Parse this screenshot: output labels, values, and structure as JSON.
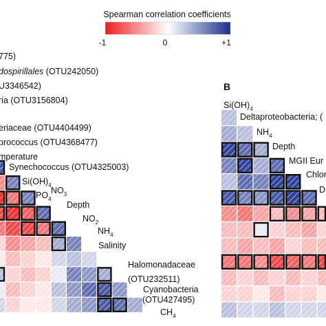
{
  "legend": {
    "title": "Spearman correlation coefficients",
    "ticks": [
      "-1",
      "0",
      "+1"
    ],
    "colors": {
      "negative": "#ee1c1c",
      "zero": "#ffffff",
      "positive": "#1b2f8c"
    }
  },
  "panel_b_label": "B",
  "chart_data": [
    {
      "type": "heatmap",
      "panel": "A",
      "taxa_labels": [
        {
          "text": "775)",
          "italic_prefix": ""
        },
        {
          "text": "(OTU242050)",
          "italic_prefix": "dospirillales "
        },
        {
          "text": "U3346542)",
          "italic_prefix": ""
        },
        {
          "text": "ria (OTU3156804)",
          "italic_prefix": ""
        },
        {
          "text": "eriaceae (OTU4404499)",
          "italic_prefix": ""
        },
        {
          "text": "prococcus (OTU4368477)",
          "italic_prefix": ""
        },
        {
          "text": "mperature",
          "italic_prefix": ""
        }
      ],
      "diagonal_labels": [
        "Synechococcus (OTU4325003)",
        "Si(OH)",
        "PO",
        "NO",
        "Depth",
        "NO",
        "NH",
        "Salinity",
        "Halomonadaceae",
        "(OTU232511)",
        "Cyanobacteria",
        "(OTU427495)",
        "CH"
      ],
      "subscripts": [
        "4",
        "4",
        "3",
        "2",
        "4",
        "4"
      ],
      "rows": [
        {
          "values": [
            0.8
          ]
        },
        {
          "values": [
            -0.5,
            0.6
          ]
        },
        {
          "values": [
            -0.9,
            -0.6,
            0.6
          ]
        },
        {
          "values": [
            -0.8,
            -0.9,
            -0.7,
            0.7
          ]
        },
        {
          "values": [
            -0.6,
            -0.8,
            -0.8,
            -0.6,
            0.7
          ]
        },
        {
          "values": [
            -0.2,
            -0.5,
            -0.4,
            -0.3,
            0.4,
            0.6
          ]
        },
        {
          "values": [
            -0.1,
            -0.3,
            -0.2,
            -0.1,
            0.2,
            0.3,
            0.2
          ]
        },
        {
          "values": [
            0.3,
            -0.2,
            -0.3,
            -0.2,
            0.1,
            0.6,
            0.5,
            0.4
          ]
        },
        {
          "values": [
            0.1,
            -0.3,
            -0.2,
            -0.1,
            0.3,
            0.5,
            0.7,
            0.8,
            0.5
          ]
        },
        {
          "values": [
            0.2,
            -0.2,
            -0.1,
            -0.1,
            0.2,
            0.4,
            0.5,
            0.8,
            0.7,
            0.4
          ]
        }
      ],
      "significant": [
        [
          0,
          0
        ],
        [
          1,
          1
        ],
        [
          2,
          0
        ],
        [
          2,
          1
        ],
        [
          2,
          2
        ],
        [
          3,
          0
        ],
        [
          3,
          1
        ],
        [
          3,
          2
        ],
        [
          3,
          3
        ],
        [
          4,
          2
        ],
        [
          4,
          3
        ],
        [
          4,
          4
        ],
        [
          5,
          4
        ],
        [
          7,
          0
        ],
        [
          7,
          7
        ],
        [
          8,
          7
        ],
        [
          9,
          7
        ],
        [
          9,
          8
        ]
      ]
    },
    {
      "type": "heatmap",
      "panel": "B",
      "diagonal_labels": [
        "Si(OH)",
        "Deltaproteobacteria; (",
        "NH",
        "Depth",
        "MGII Eur",
        "Chlor",
        "D"
      ],
      "subscripts": [
        "4",
        "4"
      ],
      "rows": [
        {
          "values": [
            0.3
          ]
        },
        {
          "values": [
            0.4,
            0.3
          ]
        },
        {
          "values": [
            0.9,
            0.7,
            0.4
          ]
        },
        {
          "values": [
            0.6,
            0.9,
            0.4,
            0.7
          ]
        },
        {
          "values": [
            0.3,
            0.7,
            0.6,
            0.9,
            0.9
          ]
        },
        {
          "values": [
            0.8,
            0.6,
            0.5,
            0.8,
            0.9,
            0.7
          ]
        },
        {
          "values": [
            -0.5,
            -0.6,
            -0.4,
            -0.3,
            -0.5,
            -0.4,
            -0.3
          ]
        },
        {
          "values": [
            -0.3,
            -0.3,
            0.1,
            -0.2,
            -0.3,
            -0.4,
            -0.2
          ]
        },
        {
          "values": [
            -0.3,
            -0.4,
            -0.3,
            -0.4,
            -0.2,
            -0.3,
            -0.3
          ]
        },
        {
          "values": [
            -0.6,
            -0.6,
            -0.5,
            -0.8,
            -0.7,
            -0.6,
            -0.8
          ]
        },
        {
          "values": [
            -0.3,
            -0.2,
            -0.3,
            -0.2,
            -0.3,
            -0.2,
            -0.3
          ]
        },
        {
          "values": [
            -0.2,
            -0.2,
            -0.1,
            -0.3,
            -0.2,
            -0.2,
            -0.1
          ]
        },
        {
          "values": [
            0.3,
            0.2,
            0.2,
            0.3,
            0.2,
            0.2,
            0.2
          ]
        }
      ],
      "significant": [
        [
          2,
          0
        ],
        [
          2,
          1
        ],
        [
          2,
          2
        ],
        [
          3,
          1
        ],
        [
          3,
          3
        ],
        [
          4,
          3
        ],
        [
          4,
          4
        ],
        [
          5,
          0
        ],
        [
          5,
          1
        ],
        [
          5,
          2
        ],
        [
          5,
          3
        ],
        [
          5,
          4
        ],
        [
          5,
          5
        ],
        [
          6,
          3
        ],
        [
          6,
          4
        ],
        [
          6,
          5
        ],
        [
          6,
          6
        ],
        [
          7,
          2
        ],
        [
          9,
          0
        ],
        [
          9,
          1
        ],
        [
          9,
          2
        ],
        [
          9,
          3
        ],
        [
          9,
          4
        ],
        [
          9,
          5
        ],
        [
          9,
          6
        ]
      ]
    }
  ]
}
